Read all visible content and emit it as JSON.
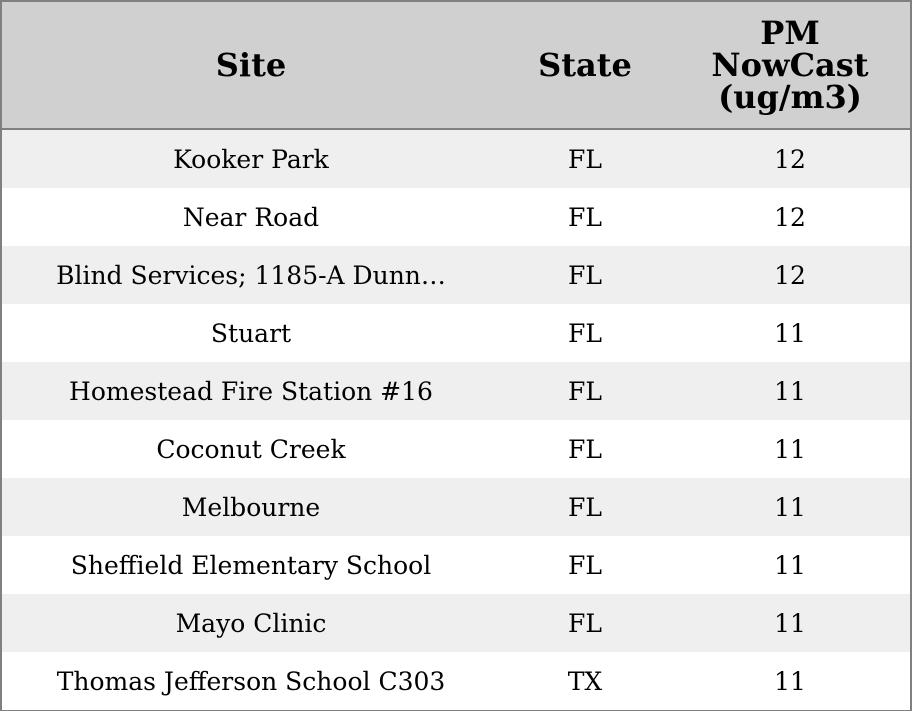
{
  "table": {
    "headers": {
      "site": "Site",
      "state": "State",
      "pm_line1": "PM",
      "pm_line2": "NowCast",
      "pm_line3": "(ug/m3)"
    },
    "rows": [
      {
        "site": "Kooker Park",
        "state": "FL",
        "pm": "12"
      },
      {
        "site": "Near Road",
        "state": "FL",
        "pm": "12"
      },
      {
        "site": "Blind Services; 1185-A Dunn…",
        "state": "FL",
        "pm": "12"
      },
      {
        "site": "Stuart",
        "state": "FL",
        "pm": "11"
      },
      {
        "site": "Homestead Fire Station #16",
        "state": "FL",
        "pm": "11"
      },
      {
        "site": "Coconut Creek",
        "state": "FL",
        "pm": "11"
      },
      {
        "site": "Melbourne",
        "state": "FL",
        "pm": "11"
      },
      {
        "site": "Sheffield Elementary School",
        "state": "FL",
        "pm": "11"
      },
      {
        "site": "Mayo Clinic",
        "state": "FL",
        "pm": "11"
      },
      {
        "site": "Thomas Jefferson School C303",
        "state": "TX",
        "pm": "11"
      }
    ]
  },
  "colors": {
    "header_bg": "#d0d0d0",
    "row_alt_bg": "#efefef",
    "border": "#808080"
  }
}
